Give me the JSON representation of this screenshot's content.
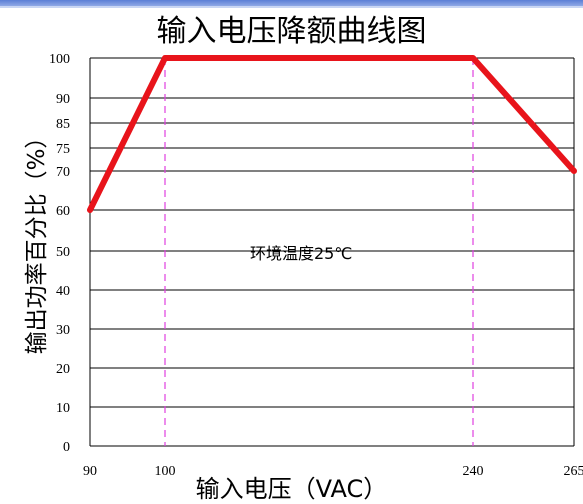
{
  "chart_data": {
    "type": "line",
    "title": "输入电压降额曲线图",
    "xlabel": "输入电压（VAC）",
    "ylabel": "输出功率百分比（%）",
    "x_ticks": [
      "90",
      "100",
      "240",
      "265"
    ],
    "y_ticks": [
      "0",
      "10",
      "20",
      "30",
      "40",
      "50",
      "60",
      "70",
      "75",
      "85",
      "90",
      "100"
    ],
    "series": [
      {
        "x": [
          90,
          100,
          240,
          265
        ],
        "y": [
          60,
          100,
          100,
          70
        ],
        "color": "#e8141b"
      }
    ],
    "reference_lines_x": [
      100,
      240
    ],
    "reference_line_color": "#e040e0",
    "annotation": "环境温度25℃",
    "grid": true
  }
}
